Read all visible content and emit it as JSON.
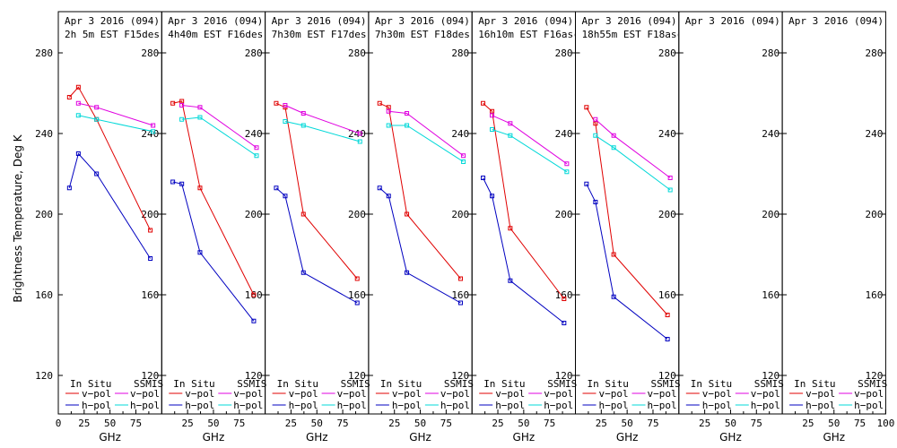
{
  "figure": {
    "ylabel": "Brightness Temperature, Deg K",
    "xlabel": "GHz",
    "legend": {
      "in_situ": "In Situ",
      "ssmis": "SSMIS",
      "vpol": "v−pol",
      "hpol": "h−pol"
    },
    "colors": {
      "insitu_v": "#e00000",
      "insitu_h": "#0000c0",
      "ssmis_v": "#e000e0",
      "ssmis_h": "#00d8d8"
    }
  },
  "chart_data": [
    {
      "type": "line",
      "title": "Apr 3 2016 (094)",
      "subtitle": "2h 5m  EST F15des",
      "xlabel": "GHz",
      "ylabel": "Brightness Temperature, Deg K",
      "xlim": [
        0,
        100
      ],
      "ylim": [
        110,
        290
      ],
      "xticks": [
        0,
        25,
        50,
        75
      ],
      "yticks": [
        120,
        160,
        200,
        240,
        280
      ],
      "series": [
        {
          "key": "insitu_v",
          "x": [
            10.7,
            19.4,
            37,
            89
          ],
          "y": [
            258,
            263,
            247,
            192
          ]
        },
        {
          "key": "insitu_h",
          "x": [
            10.7,
            19.4,
            37,
            89
          ],
          "y": [
            213,
            230,
            220,
            178
          ]
        },
        {
          "key": "ssmis_v",
          "x": [
            19.35,
            37,
            91.65
          ],
          "y": [
            255,
            253,
            244
          ]
        },
        {
          "key": "ssmis_h",
          "x": [
            19.35,
            37,
            91.65
          ],
          "y": [
            249,
            247,
            241
          ]
        }
      ]
    },
    {
      "type": "line",
      "title": "Apr 3 2016 (094)",
      "subtitle": "4h40m EST F16des",
      "xlabel": "GHz",
      "xlim": [
        0,
        100
      ],
      "ylim": [
        110,
        290
      ],
      "xticks": [
        25,
        50,
        75
      ],
      "yticks": [
        120,
        160,
        200,
        240,
        280
      ],
      "series": [
        {
          "key": "insitu_v",
          "x": [
            10.7,
            19.4,
            37,
            89
          ],
          "y": [
            255,
            256,
            213,
            160
          ]
        },
        {
          "key": "insitu_h",
          "x": [
            10.7,
            19.4,
            37,
            89
          ],
          "y": [
            216,
            215,
            181,
            147
          ]
        },
        {
          "key": "ssmis_v",
          "x": [
            19.35,
            37,
            91.65
          ],
          "y": [
            254,
            253,
            233
          ]
        },
        {
          "key": "ssmis_h",
          "x": [
            19.35,
            37,
            91.65
          ],
          "y": [
            247,
            248,
            229
          ]
        }
      ]
    },
    {
      "type": "line",
      "title": "Apr 3 2016 (094)",
      "subtitle": "7h30m EST F17des",
      "xlabel": "GHz",
      "xlim": [
        0,
        100
      ],
      "ylim": [
        110,
        290
      ],
      "xticks": [
        25,
        50,
        75
      ],
      "yticks": [
        120,
        160,
        200,
        240,
        280
      ],
      "series": [
        {
          "key": "insitu_v",
          "x": [
            10.7,
            19.4,
            37,
            89
          ],
          "y": [
            255,
            253,
            200,
            168
          ]
        },
        {
          "key": "insitu_h",
          "x": [
            10.7,
            19.4,
            37,
            89
          ],
          "y": [
            213,
            209,
            171,
            156
          ]
        },
        {
          "key": "ssmis_v",
          "x": [
            19.35,
            37,
            91.65
          ],
          "y": [
            254,
            250,
            240
          ]
        },
        {
          "key": "ssmis_h",
          "x": [
            19.35,
            37,
            91.65
          ],
          "y": [
            246,
            244,
            236
          ]
        }
      ]
    },
    {
      "type": "line",
      "title": "Apr 3 2016 (094)",
      "subtitle": "7h30m EST F18des",
      "xlabel": "GHz",
      "xlim": [
        0,
        100
      ],
      "ylim": [
        110,
        290
      ],
      "xticks": [
        25,
        50,
        75
      ],
      "yticks": [
        120,
        160,
        200,
        240,
        280
      ],
      "series": [
        {
          "key": "insitu_v",
          "x": [
            10.7,
            19.4,
            37,
            89
          ],
          "y": [
            255,
            253,
            200,
            168
          ]
        },
        {
          "key": "insitu_h",
          "x": [
            10.7,
            19.4,
            37,
            89
          ],
          "y": [
            213,
            209,
            171,
            156
          ]
        },
        {
          "key": "ssmis_v",
          "x": [
            19.35,
            37,
            91.65
          ],
          "y": [
            251,
            250,
            229
          ]
        },
        {
          "key": "ssmis_h",
          "x": [
            19.35,
            37,
            91.65
          ],
          "y": [
            244,
            244,
            226
          ]
        }
      ]
    },
    {
      "type": "line",
      "title": "Apr 3 2016 (094)",
      "subtitle": "16h10m EST F16asc",
      "xlabel": "GHz",
      "xlim": [
        0,
        100
      ],
      "ylim": [
        110,
        290
      ],
      "xticks": [
        25,
        50,
        75
      ],
      "yticks": [
        120,
        160,
        200,
        240,
        280
      ],
      "series": [
        {
          "key": "insitu_v",
          "x": [
            10.7,
            19.4,
            37,
            89
          ],
          "y": [
            255,
            251,
            193,
            158
          ]
        },
        {
          "key": "insitu_h",
          "x": [
            10.7,
            19.4,
            37,
            89
          ],
          "y": [
            218,
            209,
            167,
            146
          ]
        },
        {
          "key": "ssmis_v",
          "x": [
            19.35,
            37,
            91.65
          ],
          "y": [
            249,
            245,
            225
          ]
        },
        {
          "key": "ssmis_h",
          "x": [
            19.35,
            37,
            91.65
          ],
          "y": [
            242,
            239,
            221
          ]
        }
      ]
    },
    {
      "type": "line",
      "title": "Apr 3 2016 (094)",
      "subtitle": "18h55m EST F18asc",
      "xlabel": "GHz",
      "xlim": [
        0,
        100
      ],
      "ylim": [
        110,
        290
      ],
      "xticks": [
        25,
        50,
        75
      ],
      "yticks": [
        120,
        160,
        200,
        240,
        280
      ],
      "series": [
        {
          "key": "insitu_v",
          "x": [
            10.7,
            19.4,
            37,
            89
          ],
          "y": [
            253,
            245,
            180,
            150
          ]
        },
        {
          "key": "insitu_h",
          "x": [
            10.7,
            19.4,
            37,
            89
          ],
          "y": [
            215,
            206,
            159,
            138
          ]
        },
        {
          "key": "ssmis_v",
          "x": [
            19.35,
            37,
            91.65
          ],
          "y": [
            247,
            239,
            218
          ]
        },
        {
          "key": "ssmis_h",
          "x": [
            19.35,
            37,
            91.65
          ],
          "y": [
            239,
            233,
            212
          ]
        }
      ]
    },
    {
      "type": "line",
      "title": "Apr 3 2016 (094)",
      "subtitle": "",
      "xlabel": "GHz",
      "xlim": [
        0,
        100
      ],
      "ylim": [
        110,
        290
      ],
      "xticks": [
        25,
        50,
        75
      ],
      "yticks": [
        120,
        160,
        200,
        240,
        280
      ],
      "series": []
    },
    {
      "type": "line",
      "title": "Apr 3 2016 (094)",
      "subtitle": "",
      "xlabel": "GHz",
      "xlim": [
        0,
        100
      ],
      "ylim": [
        110,
        290
      ],
      "xticks": [
        25,
        50,
        75,
        100
      ],
      "yticks": [
        120,
        160,
        200,
        240,
        280
      ],
      "series": []
    }
  ]
}
